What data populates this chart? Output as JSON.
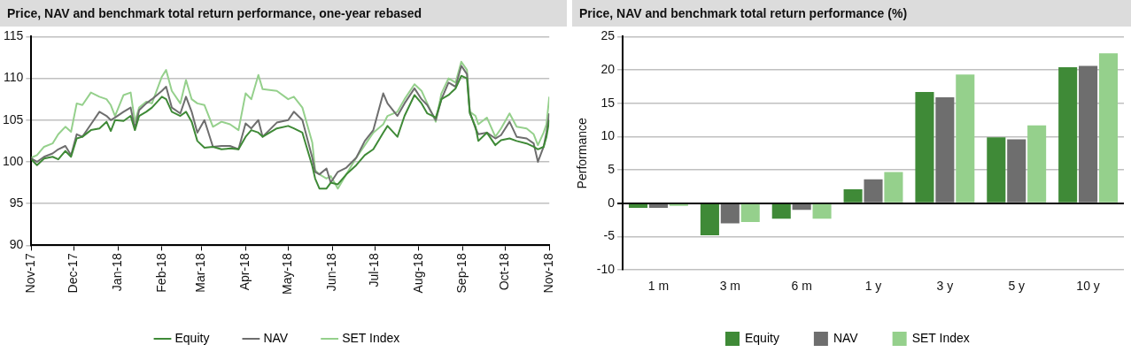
{
  "chart_data": [
    {
      "type": "line",
      "title": "Price, NAV and benchmark total return performance, one-year rebased",
      "marker": "none",
      "grid": "y",
      "legend": "bottom",
      "xlim": [
        "2017-11-01",
        "2018-11-01"
      ],
      "xticks": [
        {
          "value": "2017-11-01",
          "label": "Nov-17"
        },
        {
          "value": "2017-12-01",
          "label": "Dec-17"
        },
        {
          "value": "2018-01-01",
          "label": "Jan-18"
        },
        {
          "value": "2018-02-01",
          "label": "Feb-18"
        },
        {
          "value": "2018-03-01",
          "label": "Mar-18"
        },
        {
          "value": "2018-04-01",
          "label": "Apr-18"
        },
        {
          "value": "2018-05-01",
          "label": "May-18"
        },
        {
          "value": "2018-06-01",
          "label": "Jun-18"
        },
        {
          "value": "2018-07-01",
          "label": "Jul-18"
        },
        {
          "value": "2018-08-01",
          "label": "Aug-18"
        },
        {
          "value": "2018-09-01",
          "label": "Sep-18"
        },
        {
          "value": "2018-10-01",
          "label": "Oct-18"
        },
        {
          "value": "2018-11-01",
          "label": "Nov-18"
        }
      ],
      "ylim": [
        90,
        115
      ],
      "yticks": [
        90,
        95,
        100,
        105,
        110,
        115
      ],
      "x": [
        "2017-11-01",
        "2017-11-05",
        "2017-11-10",
        "2017-11-16",
        "2017-11-20",
        "2017-11-25",
        "2017-11-29",
        "2017-12-03",
        "2017-12-07",
        "2017-12-13",
        "2017-12-19",
        "2017-12-24",
        "2017-12-27",
        "2017-12-30",
        "2018-01-05",
        "2018-01-10",
        "2018-01-13",
        "2018-01-16",
        "2018-01-21",
        "2018-01-25",
        "2018-02-01",
        "2018-02-04",
        "2018-02-08",
        "2018-02-14",
        "2018-02-18",
        "2018-02-22",
        "2018-02-26",
        "2018-03-03",
        "2018-03-09",
        "2018-03-15",
        "2018-03-21",
        "2018-03-27",
        "2018-04-01",
        "2018-04-05",
        "2018-04-10",
        "2018-04-13",
        "2018-04-23",
        "2018-05-01",
        "2018-05-05",
        "2018-05-11",
        "2018-05-18",
        "2018-05-20",
        "2018-05-23",
        "2018-05-28",
        "2018-05-31",
        "2018-06-05",
        "2018-06-11",
        "2018-06-18",
        "2018-06-24",
        "2018-06-30",
        "2018-07-07",
        "2018-07-10",
        "2018-07-17",
        "2018-07-22",
        "2018-07-29",
        "2018-08-03",
        "2018-08-07",
        "2018-08-13",
        "2018-08-17",
        "2018-08-22",
        "2018-08-27",
        "2018-08-31",
        "2018-09-04",
        "2018-09-06",
        "2018-09-10",
        "2018-09-12",
        "2018-09-18",
        "2018-09-24",
        "2018-09-28",
        "2018-10-04",
        "2018-10-09",
        "2018-10-16",
        "2018-10-21",
        "2018-10-24",
        "2018-10-28",
        "2018-10-30",
        "2018-11-01"
      ],
      "series": [
        {
          "name": "Equity",
          "color": "#3f8a37",
          "values": [
            100.3,
            99.6,
            100.4,
            100.6,
            100.3,
            101.3,
            100.6,
            102.8,
            103.0,
            103.8,
            104.0,
            104.8,
            103.7,
            105.0,
            104.9,
            105.5,
            103.8,
            105.5,
            106.0,
            106.5,
            107.8,
            107.5,
            106.0,
            105.5,
            106.0,
            104.8,
            102.5,
            101.7,
            101.8,
            101.5,
            101.6,
            101.5,
            103.0,
            103.8,
            103.5,
            103.0,
            104.0,
            104.3,
            104.0,
            103.5,
            99.5,
            98.0,
            96.8,
            96.8,
            97.5,
            97.3,
            98.5,
            99.6,
            100.8,
            101.5,
            103.5,
            104.3,
            103.0,
            105.5,
            108.0,
            107.0,
            105.8,
            105.3,
            107.5,
            108.0,
            108.8,
            110.3,
            110.0,
            105.8,
            104.2,
            102.5,
            103.5,
            102.0,
            102.6,
            102.8,
            102.5,
            102.2,
            101.8,
            101.5,
            101.8,
            103.0,
            105.0
          ]
        },
        {
          "name": "NAV",
          "color": "#6e6e6e",
          "values": [
            100.4,
            100.0,
            100.6,
            101.0,
            101.5,
            101.9,
            100.8,
            103.3,
            103.0,
            104.5,
            106.0,
            105.5,
            105.0,
            105.3,
            106.0,
            106.5,
            104.0,
            106.2,
            107.0,
            107.5,
            108.5,
            109.0,
            106.5,
            105.8,
            107.8,
            106.0,
            103.5,
            105.0,
            101.8,
            101.9,
            101.9,
            101.5,
            104.6,
            104.0,
            105.0,
            103.0,
            104.7,
            105.0,
            106.0,
            105.0,
            100.5,
            98.8,
            98.5,
            99.2,
            97.5,
            98.8,
            99.3,
            100.5,
            102.5,
            103.8,
            108.2,
            107.0,
            105.5,
            107.0,
            108.8,
            107.5,
            106.8,
            105.0,
            107.5,
            109.5,
            109.0,
            111.5,
            110.5,
            106.0,
            104.0,
            103.3,
            103.5,
            102.8,
            103.2,
            104.8,
            103.0,
            102.8,
            102.2,
            100.0,
            101.8,
            103.5,
            105.8
          ]
        },
        {
          "name": "SET Index",
          "color": "#95d08c",
          "values": [
            100.5,
            100.8,
            101.8,
            102.2,
            103.3,
            104.2,
            103.6,
            107.0,
            106.8,
            108.3,
            107.8,
            107.5,
            106.8,
            105.5,
            108.0,
            108.3,
            104.8,
            106.5,
            107.2,
            107.0,
            110.2,
            111.0,
            108.5,
            107.0,
            109.8,
            107.5,
            107.0,
            106.8,
            104.2,
            104.8,
            104.5,
            103.8,
            108.2,
            107.5,
            110.4,
            108.7,
            108.5,
            107.5,
            107.8,
            106.5,
            102.3,
            99.0,
            98.5,
            98.0,
            98.3,
            96.8,
            98.5,
            100.5,
            102.0,
            103.5,
            104.5,
            105.5,
            106.0,
            107.5,
            109.3,
            108.5,
            107.0,
            104.8,
            108.2,
            110.0,
            109.5,
            112.0,
            111.0,
            106.0,
            105.5,
            104.5,
            105.3,
            103.0,
            104.0,
            105.8,
            104.2,
            104.0,
            103.3,
            102.0,
            103.5,
            104.5,
            107.8
          ]
        }
      ]
    },
    {
      "type": "bar",
      "title": "Price, NAV and benchmark total return performance (%)",
      "ylabel": "Performance",
      "grid": "y",
      "legend": "bottom",
      "categories": [
        "1 m",
        "3 m",
        "6 m",
        "1 y",
        "3 y",
        "5 y",
        "10 y"
      ],
      "ylim": [
        -10,
        25
      ],
      "yticks": [
        -10,
        -5,
        0,
        5,
        10,
        15,
        20,
        25
      ],
      "series": [
        {
          "name": "Equity",
          "color": "#3f8a37",
          "values": [
            -0.7,
            -4.8,
            -2.3,
            2.1,
            16.7,
            9.9,
            20.4
          ]
        },
        {
          "name": "NAV",
          "color": "#6e6e6e",
          "values": [
            -0.7,
            -3.0,
            -1.0,
            3.6,
            15.9,
            9.6,
            20.6
          ]
        },
        {
          "name": "SET Index",
          "color": "#95d08c",
          "values": [
            -0.4,
            -2.8,
            -2.3,
            4.7,
            19.3,
            11.7,
            22.5
          ]
        }
      ]
    }
  ]
}
